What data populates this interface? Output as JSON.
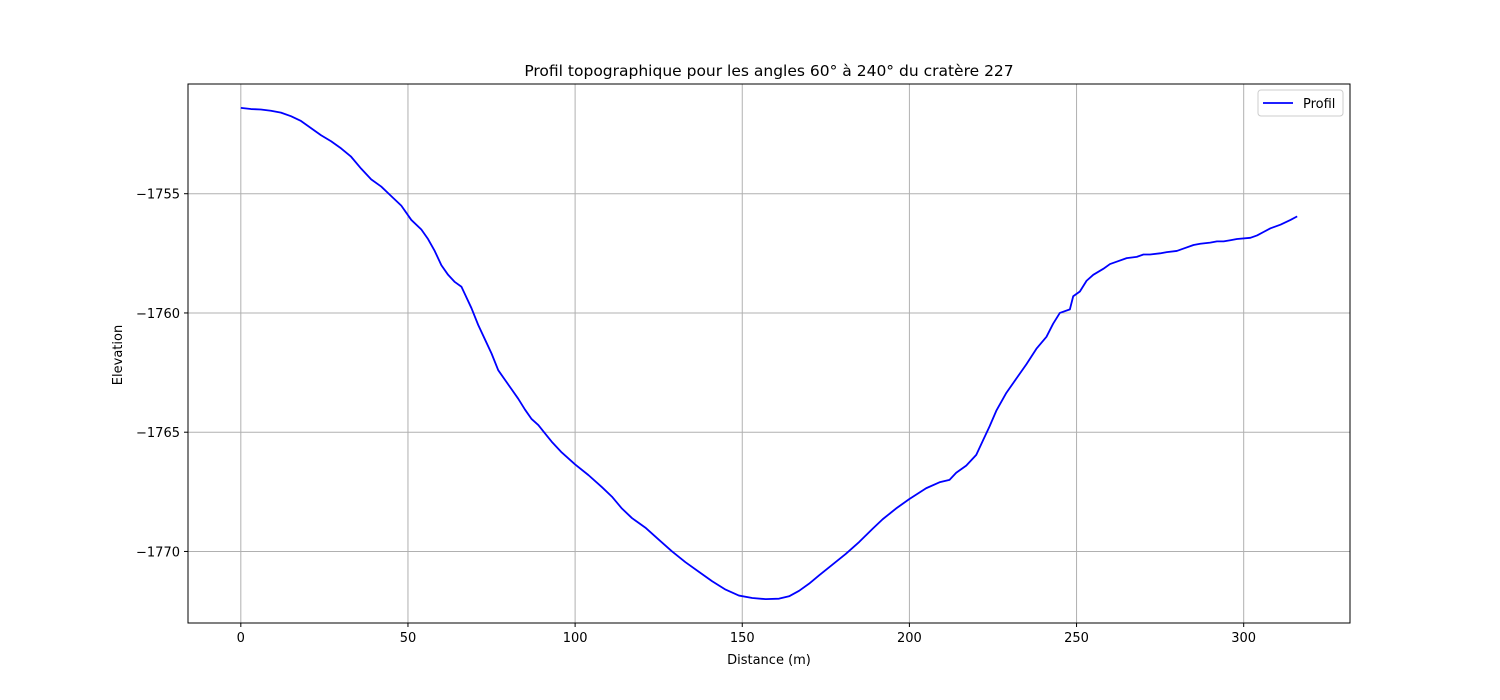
{
  "chart_data": {
    "type": "line",
    "title": "Profil topographique pour les angles 60° à 240° du cratère 227",
    "xlabel": "Distance (m)",
    "ylabel": "Elevation",
    "xlim": [
      -15.8,
      331.8
    ],
    "ylim": [
      -1773.0,
      -1750.4
    ],
    "xticks": [
      0,
      50,
      100,
      150,
      200,
      250,
      300
    ],
    "xtick_labels": [
      "0",
      "50",
      "100",
      "150",
      "200",
      "250",
      "300"
    ],
    "yticks": [
      -1755,
      -1760,
      -1765,
      -1770
    ],
    "ytick_labels": [
      "−1755",
      "−1760",
      "−1765",
      "−1770"
    ],
    "grid": true,
    "legend_position": "upper right",
    "series": [
      {
        "name": "Profil",
        "color": "#0000ff",
        "x": [
          0,
          3,
          6,
          9,
          12,
          15,
          18,
          21,
          24,
          27,
          30,
          33,
          36,
          39,
          42,
          45,
          48,
          51,
          54,
          56,
          58,
          60,
          62,
          64,
          66,
          67,
          69,
          71,
          73,
          75,
          77,
          79,
          81,
          83,
          85,
          87,
          89,
          91,
          93,
          96,
          100,
          104,
          108,
          111,
          114,
          117,
          121,
          125,
          129,
          133,
          137,
          141,
          145,
          149,
          153,
          157,
          161,
          164,
          167,
          170,
          173,
          177,
          181,
          185,
          189,
          192,
          196,
          200,
          205,
          209,
          212,
          214,
          217,
          220,
          222,
          224,
          226,
          229,
          232,
          235,
          238,
          241,
          243,
          245,
          248,
          249,
          251,
          253,
          255,
          258,
          260,
          262,
          265,
          268,
          270,
          272,
          275,
          277,
          280,
          282,
          285,
          287,
          290,
          292,
          294,
          296,
          298,
          302,
          304,
          306,
          308,
          311,
          314,
          316
        ],
        "y": [
          -1751.4,
          -1751.45,
          -1751.47,
          -1751.52,
          -1751.6,
          -1751.75,
          -1751.95,
          -1752.25,
          -1752.55,
          -1752.8,
          -1753.1,
          -1753.45,
          -1753.95,
          -1754.4,
          -1754.7,
          -1755.1,
          -1755.5,
          -1756.1,
          -1756.5,
          -1756.9,
          -1757.4,
          -1758.0,
          -1758.4,
          -1758.7,
          -1758.9,
          -1759.2,
          -1759.8,
          -1760.5,
          -1761.1,
          -1761.7,
          -1762.4,
          -1762.8,
          -1763.2,
          -1763.6,
          -1764.05,
          -1764.45,
          -1764.7,
          -1765.05,
          -1765.4,
          -1765.85,
          -1766.35,
          -1766.8,
          -1767.3,
          -1767.7,
          -1768.2,
          -1768.6,
          -1769.0,
          -1769.5,
          -1770.0,
          -1770.45,
          -1770.85,
          -1771.25,
          -1771.6,
          -1771.85,
          -1771.95,
          -1772.0,
          -1771.98,
          -1771.88,
          -1771.65,
          -1771.35,
          -1771.0,
          -1770.55,
          -1770.1,
          -1769.6,
          -1769.05,
          -1768.65,
          -1768.2,
          -1767.8,
          -1767.35,
          -1767.1,
          -1767.0,
          -1766.7,
          -1766.4,
          -1765.95,
          -1765.35,
          -1764.75,
          -1764.1,
          -1763.35,
          -1762.75,
          -1762.15,
          -1761.5,
          -1761.0,
          -1760.45,
          -1760.0,
          -1759.85,
          -1759.3,
          -1759.1,
          -1758.65,
          -1758.4,
          -1758.15,
          -1757.95,
          -1757.85,
          -1757.7,
          -1757.65,
          -1757.55,
          -1757.55,
          -1757.5,
          -1757.45,
          -1757.4,
          -1757.3,
          -1757.15,
          -1757.1,
          -1757.05,
          -1757.0,
          -1757.0,
          -1756.95,
          -1756.9,
          -1756.85,
          -1756.75,
          -1756.6,
          -1756.45,
          -1756.3,
          -1756.1,
          -1755.95
        ]
      }
    ]
  }
}
